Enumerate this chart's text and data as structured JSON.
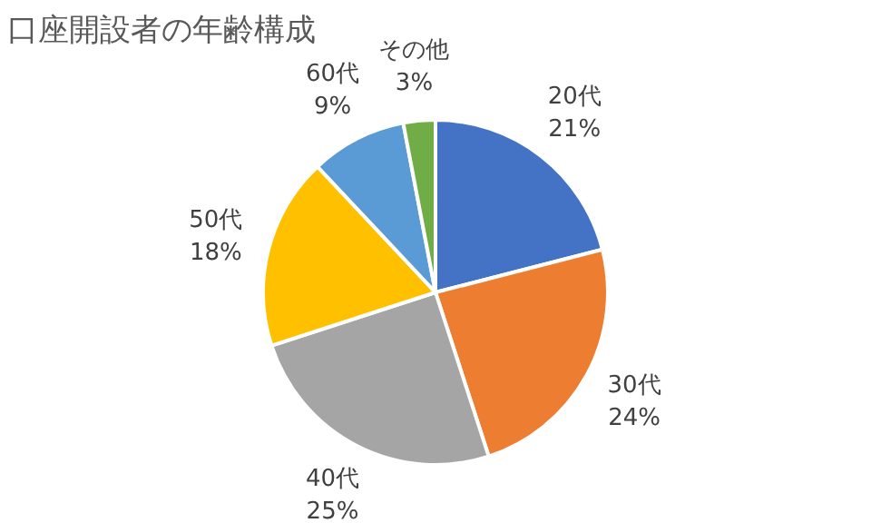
{
  "chart_data": {
    "type": "pie",
    "title": "口座開設者の年齢構成",
    "categories": [
      "20代",
      "30代",
      "40代",
      "50代",
      "60代",
      "その他"
    ],
    "values": [
      21,
      24,
      25,
      18,
      9,
      3
    ],
    "value_labels": [
      "21%",
      "24%",
      "25%",
      "18%",
      "9%",
      "3%"
    ],
    "colors": [
      "#4472c4",
      "#ed7d31",
      "#a5a5a5",
      "#ffc000",
      "#5b9bd5",
      "#70ad47"
    ]
  }
}
